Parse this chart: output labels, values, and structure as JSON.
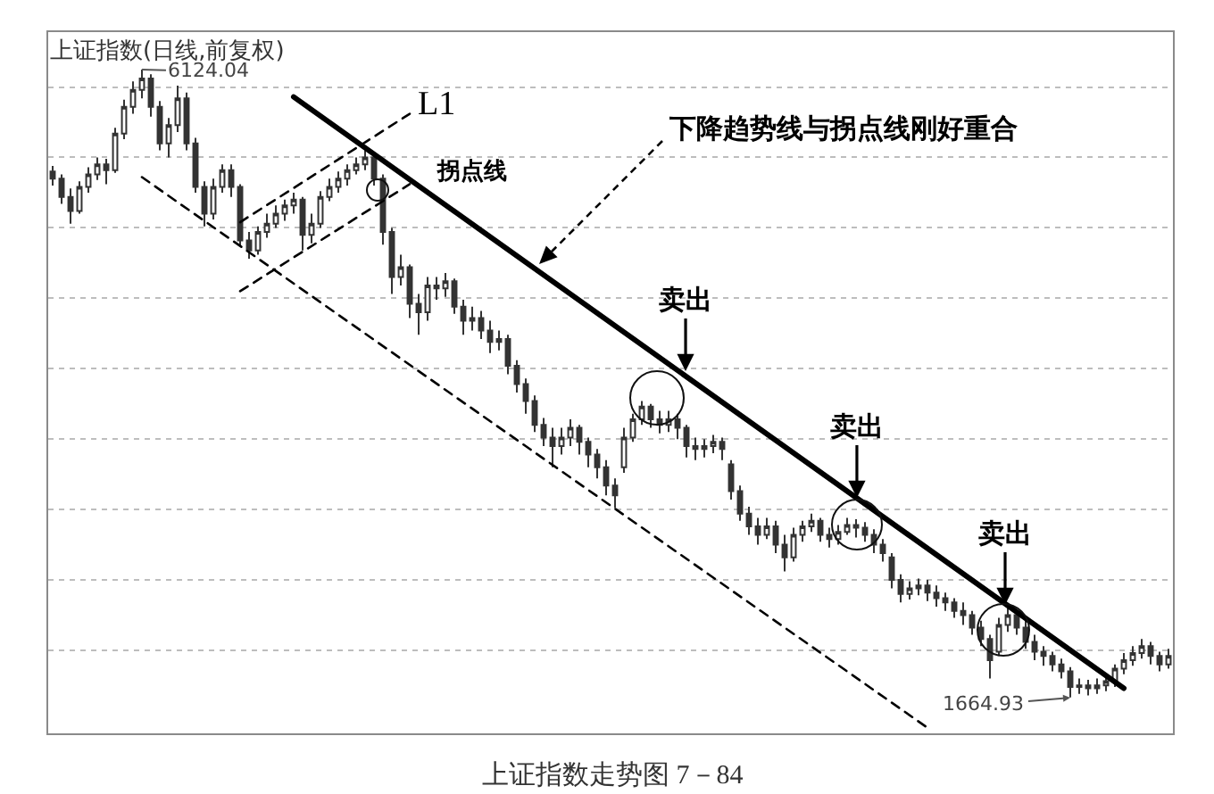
{
  "chart_data": {
    "type": "candlestick",
    "title": "上证指数(日线,前复权)",
    "categories": [
      null,
      null,
      null,
      null,
      null,
      null,
      null,
      null,
      null,
      null,
      null,
      null,
      null,
      null,
      null,
      null,
      null,
      null,
      null,
      null,
      null,
      null,
      null,
      null,
      null,
      null,
      null,
      null,
      null,
      null,
      null,
      null,
      null,
      null,
      null,
      null,
      null,
      null,
      null,
      null,
      null,
      null,
      null,
      null,
      null,
      null,
      null,
      null,
      null,
      null,
      null,
      null,
      null,
      null,
      null,
      null,
      null,
      null,
      null,
      null,
      null,
      null,
      null,
      null,
      null,
      null,
      null,
      null,
      null,
      null,
      null,
      null,
      null,
      null,
      null,
      null,
      null,
      null,
      null,
      null,
      null,
      null,
      null,
      null,
      null,
      null,
      null,
      null,
      null,
      null,
      null,
      null,
      null,
      null,
      null,
      null,
      null,
      null,
      null,
      null,
      null,
      null,
      null,
      null,
      null,
      null,
      null,
      null,
      null,
      null,
      null,
      null,
      null,
      null,
      null,
      null,
      null,
      null,
      null,
      null,
      null,
      null,
      null,
      null,
      null,
      null
    ],
    "ohlc": [
      [
        5400,
        5440,
        5300,
        5350
      ],
      [
        5350,
        5380,
        5170,
        5220
      ],
      [
        5220,
        5280,
        5030,
        5120
      ],
      [
        5120,
        5330,
        5100,
        5290
      ],
      [
        5290,
        5430,
        5250,
        5380
      ],
      [
        5380,
        5500,
        5340,
        5450
      ],
      [
        5450,
        5490,
        5310,
        5410
      ],
      [
        5410,
        5710,
        5390,
        5670
      ],
      [
        5670,
        5910,
        5630,
        5860
      ],
      [
        5860,
        6040,
        5810,
        5980
      ],
      [
        5980,
        6124.04,
        5920,
        6060
      ],
      [
        6060,
        6090,
        5790,
        5860
      ],
      [
        5860,
        5900,
        5550,
        5600
      ],
      [
        5600,
        5780,
        5500,
        5730
      ],
      [
        5730,
        6010,
        5680,
        5920
      ],
      [
        5920,
        5960,
        5550,
        5600
      ],
      [
        5600,
        5640,
        5250,
        5290
      ],
      [
        5290,
        5330,
        5010,
        5100
      ],
      [
        5100,
        5350,
        5060,
        5290
      ],
      [
        5290,
        5450,
        5250,
        5410
      ],
      [
        5410,
        5450,
        5220,
        5290
      ],
      [
        5290,
        5310,
        4870,
        4910
      ],
      [
        4910,
        4970,
        4780,
        4840
      ],
      [
        4840,
        5010,
        4810,
        4970
      ],
      [
        4970,
        5100,
        4930,
        5030
      ],
      [
        5030,
        5160,
        5000,
        5100
      ],
      [
        5100,
        5200,
        5050,
        5160
      ],
      [
        5160,
        5250,
        5100,
        5200
      ],
      [
        5200,
        5220,
        4840,
        4950
      ],
      [
        4950,
        5100,
        4890,
        5030
      ],
      [
        5030,
        5260,
        5000,
        5220
      ],
      [
        5220,
        5350,
        5190,
        5290
      ],
      [
        5290,
        5400,
        5250,
        5350
      ],
      [
        5350,
        5450,
        5300,
        5410
      ],
      [
        5410,
        5500,
        5380,
        5450
      ],
      [
        5450,
        5550,
        5410,
        5500
      ],
      [
        5500,
        5530,
        5300,
        5350
      ],
      [
        5350,
        5380,
        4880,
        4970
      ],
      [
        4970,
        5000,
        4530,
        4650
      ],
      [
        4650,
        4810,
        4590,
        4720
      ],
      [
        4720,
        4740,
        4360,
        4460
      ],
      [
        4460,
        4530,
        4240,
        4400
      ],
      [
        4400,
        4650,
        4340,
        4590
      ],
      [
        4590,
        4650,
        4490,
        4570
      ],
      [
        4570,
        4680,
        4510,
        4620
      ],
      [
        4620,
        4640,
        4390,
        4440
      ],
      [
        4440,
        4490,
        4240,
        4340
      ],
      [
        4340,
        4440,
        4270,
        4360
      ],
      [
        4360,
        4410,
        4210,
        4270
      ],
      [
        4270,
        4340,
        4110,
        4190
      ],
      [
        4190,
        4270,
        4130,
        4210
      ],
      [
        4210,
        4240,
        3960,
        4020
      ],
      [
        4020,
        4060,
        3830,
        3890
      ],
      [
        3890,
        3930,
        3680,
        3770
      ],
      [
        3770,
        3810,
        3550,
        3600
      ],
      [
        3600,
        3650,
        3450,
        3510
      ],
      [
        3510,
        3580,
        3300,
        3450
      ],
      [
        3450,
        3580,
        3390,
        3510
      ],
      [
        3510,
        3640,
        3450,
        3580
      ],
      [
        3580,
        3600,
        3390,
        3480
      ],
      [
        3480,
        3510,
        3300,
        3390
      ],
      [
        3390,
        3430,
        3220,
        3300
      ],
      [
        3300,
        3350,
        3100,
        3170
      ],
      [
        3170,
        3220,
        3010,
        3100
      ],
      [
        3300,
        3580,
        3260,
        3510
      ],
      [
        3510,
        3680,
        3480,
        3640
      ],
      [
        3640,
        3770,
        3600,
        3730
      ],
      [
        3730,
        3750,
        3580,
        3640
      ],
      [
        3640,
        3700,
        3540,
        3600
      ],
      [
        3600,
        3700,
        3550,
        3640
      ],
      [
        3640,
        3680,
        3500,
        3580
      ],
      [
        3580,
        3600,
        3370,
        3450
      ],
      [
        3450,
        3510,
        3350,
        3430
      ],
      [
        3430,
        3500,
        3370,
        3450
      ],
      [
        3450,
        3530,
        3400,
        3480
      ],
      [
        3480,
        3510,
        3350,
        3430
      ],
      [
        3320,
        3350,
        3070,
        3130
      ],
      [
        3130,
        3170,
        2920,
        2970
      ],
      [
        2970,
        3020,
        2820,
        2880
      ],
      [
        2880,
        2940,
        2750,
        2820
      ],
      [
        2820,
        2940,
        2790,
        2880
      ],
      [
        2880,
        2920,
        2690,
        2750
      ],
      [
        2750,
        2820,
        2560,
        2660
      ],
      [
        2660,
        2870,
        2630,
        2820
      ],
      [
        2820,
        2920,
        2770,
        2880
      ],
      [
        2880,
        2970,
        2840,
        2920
      ],
      [
        2920,
        2940,
        2770,
        2820
      ],
      [
        2820,
        2870,
        2730,
        2790
      ],
      [
        2790,
        2890,
        2750,
        2840
      ],
      [
        2840,
        2940,
        2820,
        2890
      ],
      [
        2890,
        2930,
        2800,
        2870
      ],
      [
        2870,
        2910,
        2770,
        2820
      ],
      [
        2820,
        2860,
        2690,
        2750
      ],
      [
        2750,
        2790,
        2630,
        2690
      ],
      [
        2660,
        2690,
        2440,
        2500
      ],
      [
        2500,
        2540,
        2340,
        2400
      ],
      [
        2400,
        2490,
        2360,
        2440
      ],
      [
        2440,
        2510,
        2390,
        2460
      ],
      [
        2460,
        2500,
        2350,
        2410
      ],
      [
        2410,
        2460,
        2310,
        2370
      ],
      [
        2370,
        2410,
        2280,
        2340
      ],
      [
        2340,
        2370,
        2230,
        2280
      ],
      [
        2280,
        2340,
        2180,
        2250
      ],
      [
        2250,
        2280,
        2110,
        2160
      ],
      [
        2160,
        2210,
        2030,
        2080
      ],
      [
        2080,
        2110,
        1800,
        1930
      ],
      [
        1990,
        2230,
        1960,
        2180
      ],
      [
        2180,
        2310,
        2130,
        2250
      ],
      [
        2250,
        2280,
        2110,
        2160
      ],
      [
        2160,
        2210,
        2010,
        2060
      ],
      [
        2060,
        2110,
        1930,
        1990
      ],
      [
        1990,
        2030,
        1890,
        1960
      ],
      [
        1960,
        1990,
        1850,
        1900
      ],
      [
        1900,
        1940,
        1800,
        1850
      ],
      [
        1850,
        1880,
        1664.93,
        1740
      ],
      [
        1740,
        1800,
        1690,
        1750
      ],
      [
        1750,
        1790,
        1680,
        1730
      ],
      [
        1730,
        1800,
        1690,
        1750
      ],
      [
        1750,
        1830,
        1710,
        1780
      ],
      [
        1780,
        1900,
        1740,
        1870
      ],
      [
        1870,
        1980,
        1830,
        1930
      ],
      [
        1930,
        2030,
        1890,
        1980
      ],
      [
        1980,
        2080,
        1940,
        2030
      ],
      [
        2030,
        2060,
        1900,
        1960
      ],
      [
        1960,
        1990,
        1850,
        1900
      ],
      [
        1900,
        2010,
        1870,
        1960
      ]
    ],
    "color": "#333333",
    "series": [
      {
        "type": "line",
        "color": "#000000",
        "line_style": "solid",
        "values": [
          null,
          null,
          null,
          null,
          null,
          null,
          null,
          null,
          null,
          null,
          null,
          null,
          null,
          null,
          null,
          null,
          null,
          null,
          null,
          null,
          null,
          null,
          null,
          null,
          null,
          null,
          null,
          5930,
          null,
          null,
          null,
          null,
          null,
          null,
          null,
          null,
          null,
          null,
          null,
          null,
          null,
          null,
          null,
          null,
          null,
          null,
          null,
          null,
          null,
          null,
          null,
          null,
          null,
          null,
          null,
          null,
          null,
          null,
          null,
          null,
          null,
          null,
          null,
          null,
          null,
          null,
          null,
          null,
          null,
          null,
          null,
          null,
          null,
          null,
          null,
          null,
          null,
          null,
          null,
          null,
          null,
          null,
          null,
          null,
          null,
          null,
          null,
          null,
          null,
          null,
          null,
          null,
          null,
          null,
          null,
          null,
          null,
          null,
          null,
          null,
          null,
          null,
          null,
          null,
          null,
          null,
          null,
          null,
          null,
          null,
          null,
          null,
          null,
          null,
          null,
          null,
          null,
          null,
          null,
          null,
          1730,
          null,
          null,
          null,
          null,
          null
        ]
      },
      {
        "type": "line",
        "color": "#000000",
        "line_style": "dashed",
        "values": [
          null,
          null,
          null,
          null,
          null,
          null,
          null,
          null,
          null,
          null,
          5360,
          null,
          null,
          null,
          null,
          null,
          null,
          null,
          null,
          null,
          null,
          null,
          null,
          null,
          null,
          null,
          null,
          null,
          null,
          null,
          null,
          null,
          null,
          null,
          null,
          null,
          null,
          null,
          null,
          null,
          null,
          null,
          null,
          null,
          null,
          null,
          null,
          null,
          null,
          null,
          null,
          null,
          null,
          null,
          null,
          null,
          null,
          null,
          null,
          null,
          null,
          null,
          null,
          null,
          null,
          null,
          null,
          null,
          null,
          null,
          null,
          null,
          null,
          null,
          null,
          null,
          null,
          null,
          null,
          null,
          null,
          null,
          null,
          null,
          null,
          null,
          null,
          null,
          null,
          null,
          null,
          null,
          null,
          null,
          null,
          null,
          null,
          null,
          1450,
          null,
          null,
          null,
          null,
          null,
          null,
          null,
          null,
          null,
          null,
          null,
          null,
          null,
          null,
          null,
          null,
          null,
          null,
          null,
          null,
          null,
          null,
          null,
          null,
          null,
          null,
          null
        ]
      },
      {
        "type": "line",
        "name": "L1",
        "color": "#000000",
        "line_style": "dashed",
        "values": [
          null,
          null,
          null,
          null,
          null,
          null,
          null,
          null,
          null,
          null,
          null,
          null,
          null,
          null,
          null,
          null,
          null,
          null,
          null,
          null,
          null,
          5040,
          null,
          null,
          null,
          null,
          null,
          null,
          null,
          null,
          null,
          null,
          null,
          null,
          null,
          null,
          null,
          null,
          null,
          null,
          5810,
          null,
          null,
          null,
          null,
          null,
          null,
          null,
          null,
          null,
          null,
          null,
          null,
          null,
          null,
          null,
          null,
          null,
          null,
          null,
          null,
          null,
          null,
          null,
          null,
          null,
          null,
          null,
          null,
          null,
          null,
          null,
          null,
          null,
          null,
          null,
          null,
          null,
          null,
          null,
          null,
          null,
          null,
          null,
          null,
          null,
          null,
          null,
          null,
          null,
          null,
          null,
          null,
          null,
          null,
          null,
          null,
          null,
          null,
          null,
          null,
          null,
          null,
          null,
          null,
          null,
          null,
          null,
          null,
          null,
          null,
          null,
          null,
          null,
          null,
          null,
          null,
          null,
          null,
          null,
          null,
          null,
          null,
          null,
          null,
          null
        ]
      },
      {
        "type": "line",
        "name": "拐点线",
        "color": "#000000",
        "line_style": "dashed",
        "values": [
          null,
          null,
          null,
          null,
          null,
          null,
          null,
          null,
          null,
          null,
          null,
          null,
          null,
          null,
          null,
          null,
          null,
          null,
          null,
          null,
          null,
          4550,
          null,
          null,
          null,
          null,
          null,
          null,
          null,
          null,
          null,
          null,
          null,
          null,
          null,
          null,
          null,
          null,
          null,
          null,
          5310,
          null,
          null,
          null,
          null,
          null,
          null,
          null,
          null,
          null,
          null,
          null,
          null,
          null,
          null,
          null,
          null,
          null,
          null,
          null,
          null,
          null,
          null,
          null,
          null,
          null,
          null,
          null,
          null,
          null,
          null,
          null,
          null,
          null,
          null,
          null,
          null,
          null,
          null,
          null,
          null,
          null,
          null,
          null,
          null,
          null,
          null,
          null,
          null,
          null,
          null,
          null,
          null,
          null,
          null,
          null,
          null,
          null,
          null,
          null,
          null,
          null,
          null,
          null,
          null,
          null,
          null,
          null,
          null,
          null,
          null,
          null,
          null,
          null,
          null,
          null,
          null,
          null,
          null,
          null,
          null,
          null,
          null,
          null,
          null,
          null
        ]
      }
    ],
    "ylim": [
      1410,
      6390
    ],
    "yticks": [
      {
        "value": 2000,
        "label": null
      },
      {
        "value": 2500,
        "label": null
      },
      {
        "value": 3000,
        "label": null
      },
      {
        "value": 3500,
        "label": null
      },
      {
        "value": 4000,
        "label": null
      },
      {
        "value": 4500,
        "label": null
      },
      {
        "value": 5000,
        "label": null
      },
      {
        "value": 5500,
        "label": null
      },
      {
        "value": 6000,
        "label": null
      }
    ],
    "grid": "y",
    "legend": false,
    "annotations": [
      "6124.04",
      "1664.93",
      "下降趋势线与拐点线刚好重合",
      "卖出",
      "卖出",
      "卖出",
      "上证指数走势图 7－84"
    ]
  }
}
